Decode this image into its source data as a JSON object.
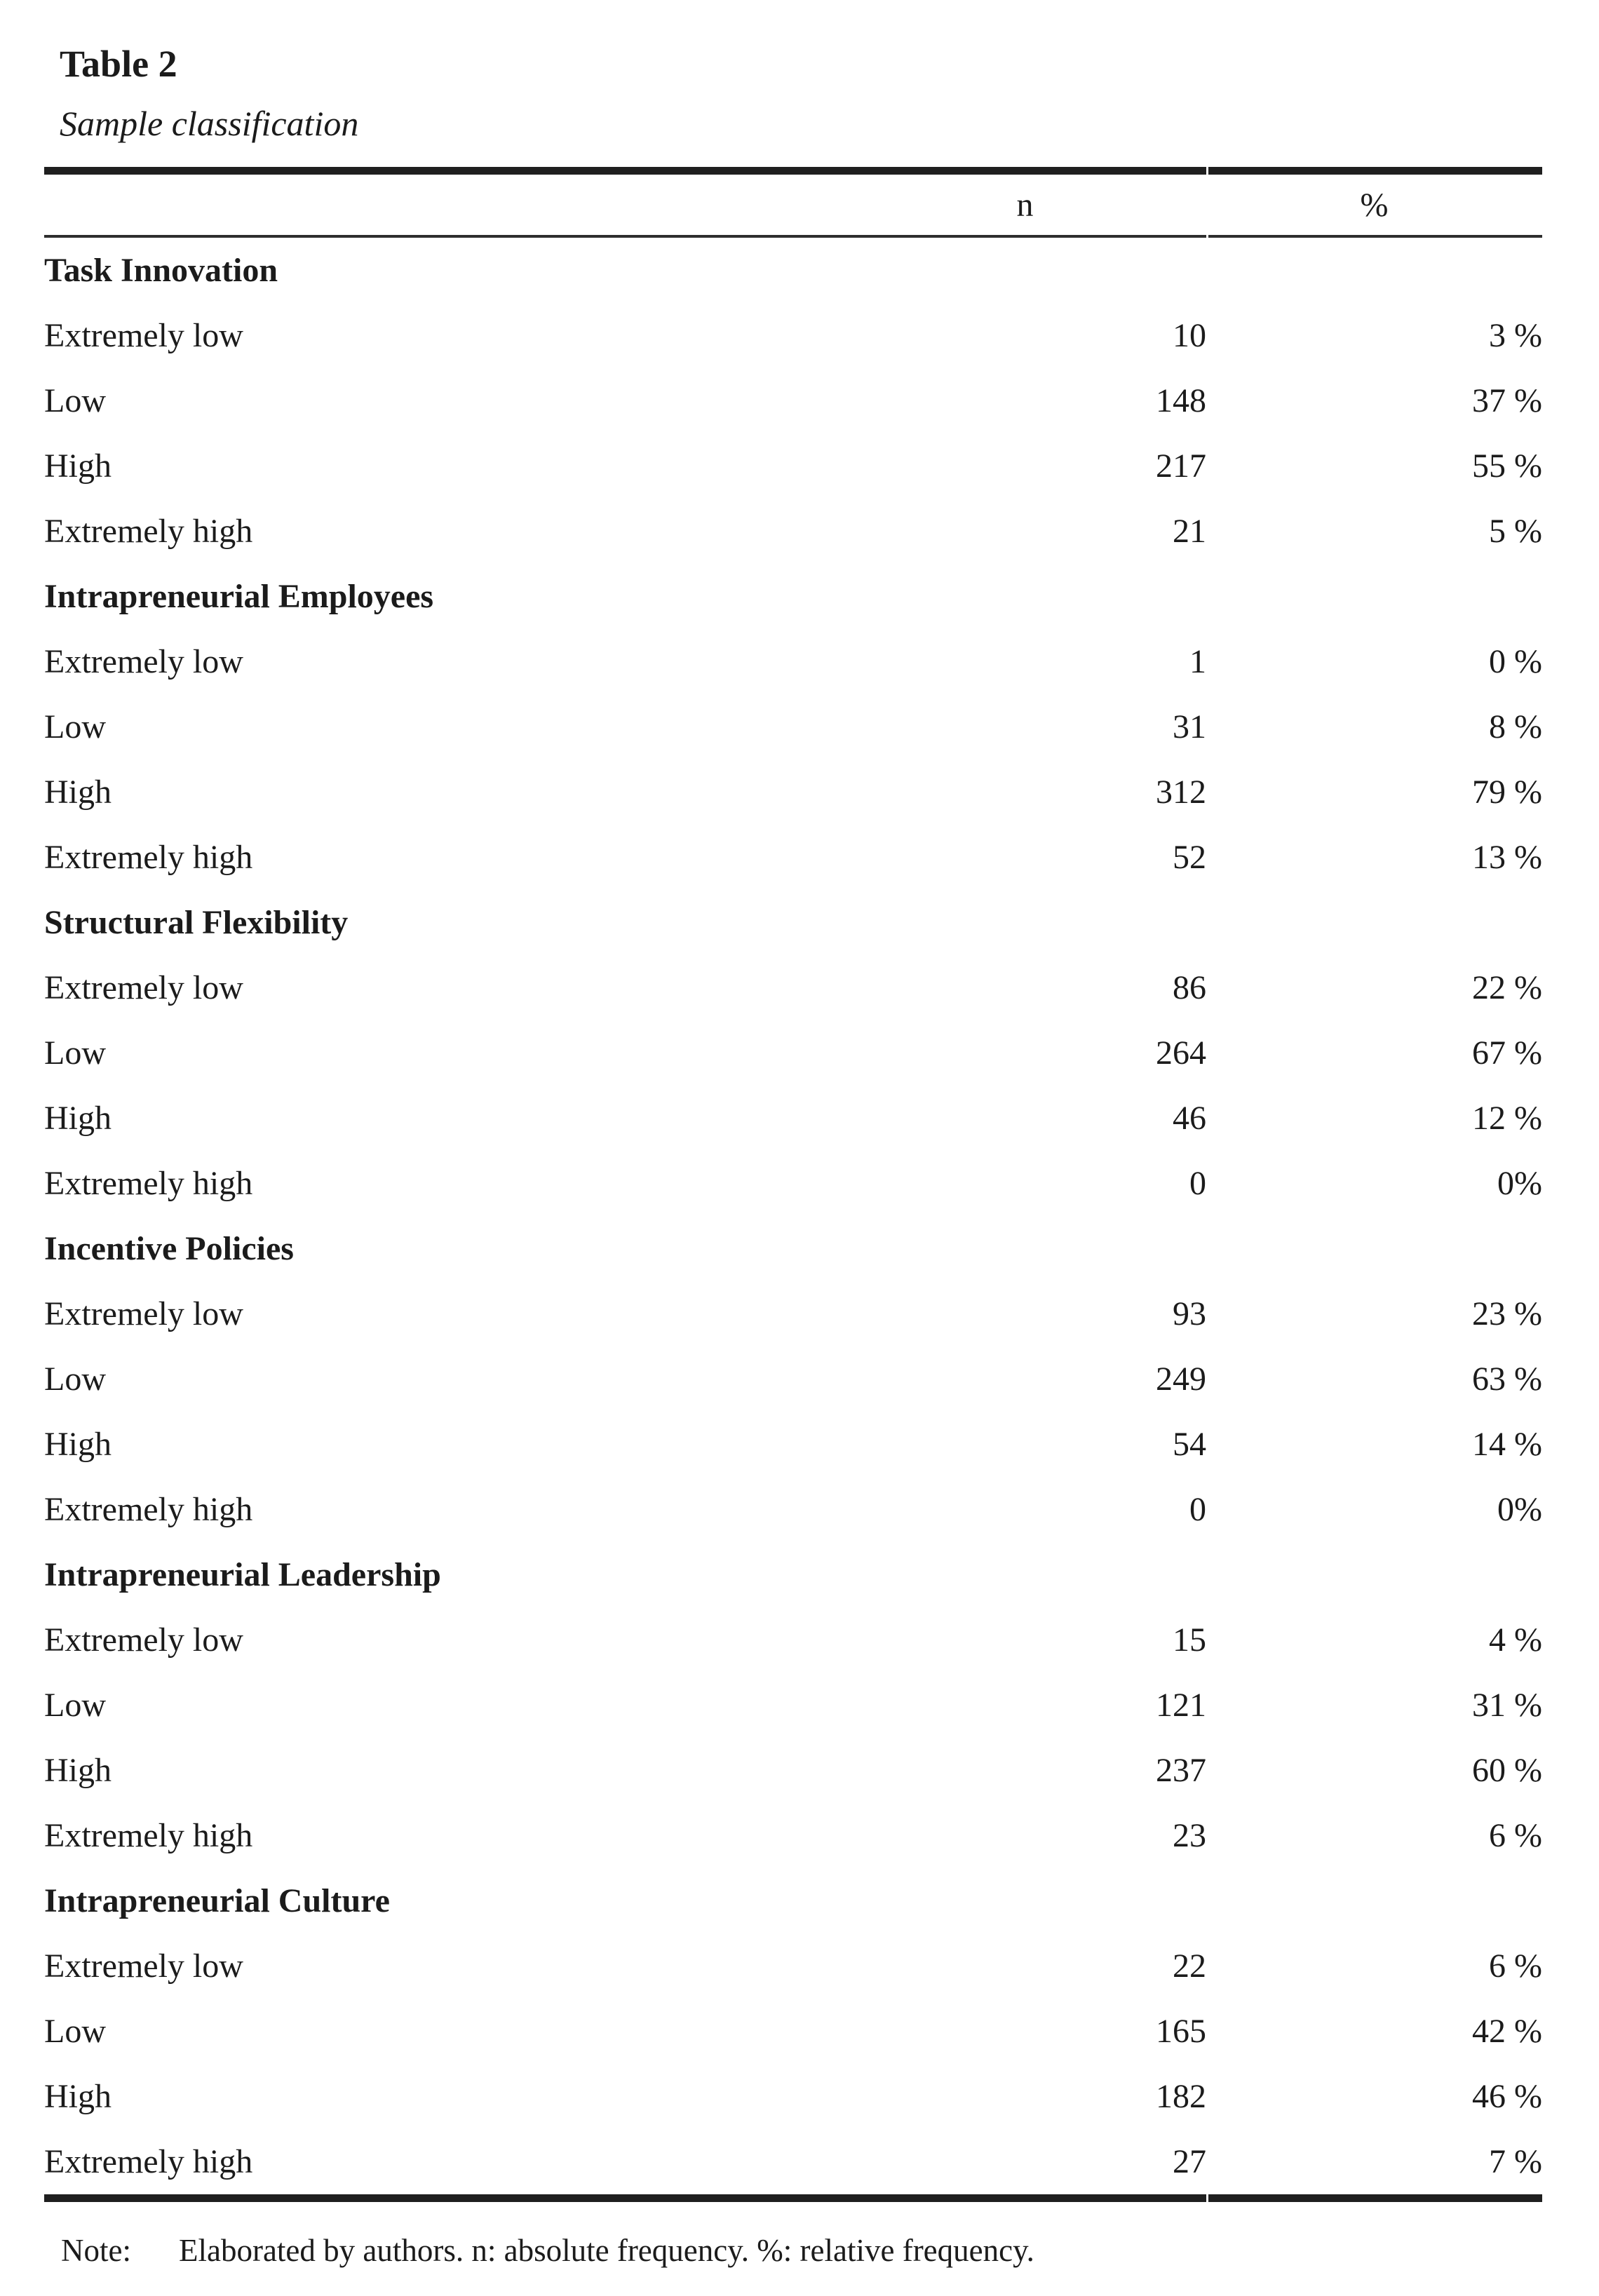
{
  "title": "Table 2",
  "subtitle": "Sample classification",
  "columns": {
    "n": "n",
    "pct": "%"
  },
  "sections": [
    {
      "name": "Task Innovation",
      "rows": [
        [
          "Extremely low",
          "10",
          "3 %"
        ],
        [
          "Low",
          "148",
          "37 %"
        ],
        [
          "High",
          "217",
          "55 %"
        ],
        [
          "Extremely high",
          "21",
          "5 %"
        ]
      ]
    },
    {
      "name": "Intrapreneurial Employees",
      "rows": [
        [
          "Extremely low",
          "1",
          "0 %"
        ],
        [
          "Low",
          "31",
          "8 %"
        ],
        [
          "High",
          "312",
          "79 %"
        ],
        [
          "Extremely high",
          "52",
          "13 %"
        ]
      ]
    },
    {
      "name": "Structural Flexibility",
      "rows": [
        [
          "Extremely low",
          "86",
          "22 %"
        ],
        [
          "Low",
          "264",
          "67 %"
        ],
        [
          "High",
          "46",
          "12 %"
        ],
        [
          "Extremely high",
          "0",
          "0%"
        ]
      ]
    },
    {
      "name": "Incentive Policies",
      "rows": [
        [
          "Extremely low",
          "93",
          "23 %"
        ],
        [
          "Low",
          "249",
          "63 %"
        ],
        [
          "High",
          "54",
          "14 %"
        ],
        [
          "Extremely high",
          "0",
          "0%"
        ]
      ]
    },
    {
      "name": "Intrapreneurial Leadership",
      "rows": [
        [
          "Extremely low",
          "15",
          "4 %"
        ],
        [
          "Low",
          "121",
          "31 %"
        ],
        [
          "High",
          "237",
          "60 %"
        ],
        [
          "Extremely high",
          "23",
          "6 %"
        ]
      ]
    },
    {
      "name": "Intrapreneurial Culture",
      "rows": [
        [
          "Extremely low",
          "22",
          "6 %"
        ],
        [
          "Low",
          "165",
          "42 %"
        ],
        [
          "High",
          "182",
          "46 %"
        ],
        [
          "Extremely high",
          "27",
          "7 %"
        ]
      ]
    }
  ],
  "note": {
    "label": "Note:",
    "text": "Elaborated by authors. n: absolute frequency. %: relative frequency."
  },
  "colors": {
    "text": "#1b1b1b",
    "rule": "#1f1f1f"
  }
}
